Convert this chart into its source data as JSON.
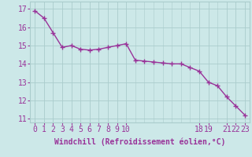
{
  "x": [
    0,
    1,
    2,
    3,
    4,
    5,
    6,
    7,
    8,
    9,
    10,
    11,
    12,
    13,
    14,
    15,
    16,
    17,
    18,
    19,
    20,
    21,
    22,
    23
  ],
  "y": [
    16.9,
    16.5,
    15.7,
    14.9,
    15.0,
    14.8,
    14.75,
    14.8,
    14.9,
    15.0,
    15.1,
    14.2,
    14.15,
    14.1,
    14.05,
    14.0,
    14.0,
    13.8,
    13.6,
    13.0,
    12.8,
    12.2,
    11.7,
    11.2
  ],
  "line_color": "#993399",
  "marker": "+",
  "marker_size": 4,
  "linewidth": 1.0,
  "background_color": "#cce8e8",
  "grid_color": "#aacccc",
  "xlabel": "Windchill (Refroidissement éolien,°C)",
  "xlabel_color": "#993399",
  "xlabel_fontsize": 7,
  "tick_color": "#993399",
  "tick_fontsize": 7,
  "ylim": [
    10.8,
    17.4
  ],
  "xlim": [
    -0.5,
    23.5
  ],
  "yticks": [
    11,
    12,
    13,
    14,
    15,
    16,
    17
  ],
  "xtick_positions": [
    0,
    1,
    2,
    3,
    4,
    5,
    6,
    7,
    8,
    9,
    10,
    18,
    19,
    21,
    22,
    23
  ],
  "xtick_labels": [
    "0",
    "1",
    "2",
    "3",
    "4",
    "5",
    "6",
    "7",
    "8",
    "9",
    "10",
    "18",
    "19",
    "21",
    "22",
    "23"
  ]
}
